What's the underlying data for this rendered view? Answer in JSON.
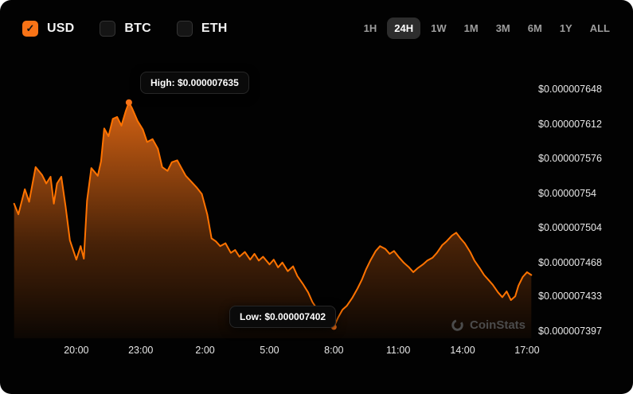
{
  "header": {
    "coins": [
      {
        "label": "USD",
        "checked": true
      },
      {
        "label": "BTC",
        "checked": false
      },
      {
        "label": "ETH",
        "checked": false
      }
    ],
    "ranges": [
      {
        "label": "1H",
        "active": false
      },
      {
        "label": "24H",
        "active": true
      },
      {
        "label": "1W",
        "active": false
      },
      {
        "label": "1M",
        "active": false
      },
      {
        "label": "3M",
        "active": false
      },
      {
        "label": "6M",
        "active": false
      },
      {
        "label": "1Y",
        "active": false
      },
      {
        "label": "ALL",
        "active": false
      }
    ]
  },
  "icons": {
    "check": "✓"
  },
  "tooltips": {
    "high": "High: $0.000007635",
    "low": "Low: $0.000007402"
  },
  "watermark": "CoinStats",
  "colors": {
    "accent": "#f97316",
    "line": "#ff7300",
    "background": "#020202",
    "active_pill": "#2d2d2d",
    "axis_text": "#e8e8e8"
  },
  "chart_data": {
    "type": "area",
    "title": "24H token price in USD",
    "legend": "none",
    "grid": false,
    "value_unit": "USD x 1e-9 (7530 = $0.00000753)",
    "x_unit": "hours since 17:00",
    "x_domain": [
      0,
      24.3
    ],
    "y_domain": [
      7397,
      7648
    ],
    "x_ticks": [
      {
        "hour": 3,
        "label": "20:00"
      },
      {
        "hour": 6,
        "label": "23:00"
      },
      {
        "hour": 9,
        "label": "2:00"
      },
      {
        "hour": 12,
        "label": "5:00"
      },
      {
        "hour": 15,
        "label": "8:00"
      },
      {
        "hour": 18,
        "label": "11:00"
      },
      {
        "hour": 21,
        "label": "14:00"
      },
      {
        "hour": 24,
        "label": "17:00"
      }
    ],
    "y_ticks": [
      {
        "value": 7648,
        "label": "$0.000007648"
      },
      {
        "value": 7612,
        "label": "$0.000007612"
      },
      {
        "value": 7576,
        "label": "$0.000007576"
      },
      {
        "value": 7540,
        "label": "$0.00000754"
      },
      {
        "value": 7504,
        "label": "$0.000007504"
      },
      {
        "value": 7468,
        "label": "$0.000007468"
      },
      {
        "value": 7433,
        "label": "$0.000007433"
      },
      {
        "value": 7397,
        "label": "$0.000007397"
      }
    ],
    "high": {
      "hour": 5.45,
      "value": 7635
    },
    "low": {
      "hour": 15.0,
      "value": 7402
    },
    "points": [
      [
        0.1,
        7530
      ],
      [
        0.3,
        7519
      ],
      [
        0.6,
        7545
      ],
      [
        0.8,
        7532
      ],
      [
        1.1,
        7568
      ],
      [
        1.4,
        7560
      ],
      [
        1.6,
        7551
      ],
      [
        1.8,
        7558
      ],
      [
        1.95,
        7530
      ],
      [
        2.1,
        7551
      ],
      [
        2.3,
        7558
      ],
      [
        2.5,
        7527
      ],
      [
        2.7,
        7492
      ],
      [
        3.0,
        7472
      ],
      [
        3.2,
        7486
      ],
      [
        3.35,
        7473
      ],
      [
        3.5,
        7533
      ],
      [
        3.7,
        7567
      ],
      [
        4.0,
        7559
      ],
      [
        4.15,
        7574
      ],
      [
        4.3,
        7608
      ],
      [
        4.5,
        7600
      ],
      [
        4.7,
        7618
      ],
      [
        4.9,
        7620
      ],
      [
        5.1,
        7611
      ],
      [
        5.3,
        7626
      ],
      [
        5.45,
        7635
      ],
      [
        5.6,
        7629
      ],
      [
        5.85,
        7616
      ],
      [
        6.1,
        7607
      ],
      [
        6.3,
        7594
      ],
      [
        6.55,
        7597
      ],
      [
        6.8,
        7587
      ],
      [
        7.0,
        7568
      ],
      [
        7.25,
        7564
      ],
      [
        7.45,
        7573
      ],
      [
        7.7,
        7575
      ],
      [
        7.9,
        7567
      ],
      [
        8.1,
        7559
      ],
      [
        8.35,
        7553
      ],
      [
        8.6,
        7547
      ],
      [
        8.85,
        7540
      ],
      [
        9.1,
        7519
      ],
      [
        9.3,
        7494
      ],
      [
        9.5,
        7491
      ],
      [
        9.7,
        7486
      ],
      [
        9.95,
        7489
      ],
      [
        10.2,
        7479
      ],
      [
        10.4,
        7482
      ],
      [
        10.6,
        7475
      ],
      [
        10.85,
        7480
      ],
      [
        11.1,
        7472
      ],
      [
        11.3,
        7478
      ],
      [
        11.5,
        7471
      ],
      [
        11.7,
        7475
      ],
      [
        12.0,
        7467
      ],
      [
        12.2,
        7472
      ],
      [
        12.4,
        7464
      ],
      [
        12.6,
        7469
      ],
      [
        12.85,
        7460
      ],
      [
        13.1,
        7465
      ],
      [
        13.3,
        7455
      ],
      [
        13.55,
        7447
      ],
      [
        13.8,
        7438
      ],
      [
        14.0,
        7428
      ],
      [
        14.3,
        7418
      ],
      [
        14.5,
        7412
      ],
      [
        14.65,
        7416
      ],
      [
        14.85,
        7408
      ],
      [
        15.0,
        7402
      ],
      [
        15.2,
        7412
      ],
      [
        15.4,
        7420
      ],
      [
        15.6,
        7424
      ],
      [
        15.85,
        7432
      ],
      [
        16.1,
        7442
      ],
      [
        16.3,
        7451
      ],
      [
        16.5,
        7462
      ],
      [
        16.7,
        7471
      ],
      [
        16.95,
        7481
      ],
      [
        17.15,
        7486
      ],
      [
        17.4,
        7483
      ],
      [
        17.6,
        7478
      ],
      [
        17.8,
        7481
      ],
      [
        18.05,
        7474
      ],
      [
        18.25,
        7469
      ],
      [
        18.5,
        7464
      ],
      [
        18.7,
        7459
      ],
      [
        18.9,
        7463
      ],
      [
        19.15,
        7467
      ],
      [
        19.35,
        7471
      ],
      [
        19.6,
        7474
      ],
      [
        19.8,
        7479
      ],
      [
        20.05,
        7487
      ],
      [
        20.25,
        7491
      ],
      [
        20.5,
        7497
      ],
      [
        20.7,
        7500
      ],
      [
        20.9,
        7494
      ],
      [
        21.1,
        7489
      ],
      [
        21.35,
        7480
      ],
      [
        21.55,
        7471
      ],
      [
        21.8,
        7463
      ],
      [
        22.0,
        7456
      ],
      [
        22.2,
        7451
      ],
      [
        22.4,
        7446
      ],
      [
        22.65,
        7438
      ],
      [
        22.85,
        7433
      ],
      [
        23.05,
        7439
      ],
      [
        23.25,
        7430
      ],
      [
        23.45,
        7434
      ],
      [
        23.6,
        7445
      ],
      [
        23.8,
        7454
      ],
      [
        24.0,
        7459
      ],
      [
        24.2,
        7456
      ]
    ]
  }
}
